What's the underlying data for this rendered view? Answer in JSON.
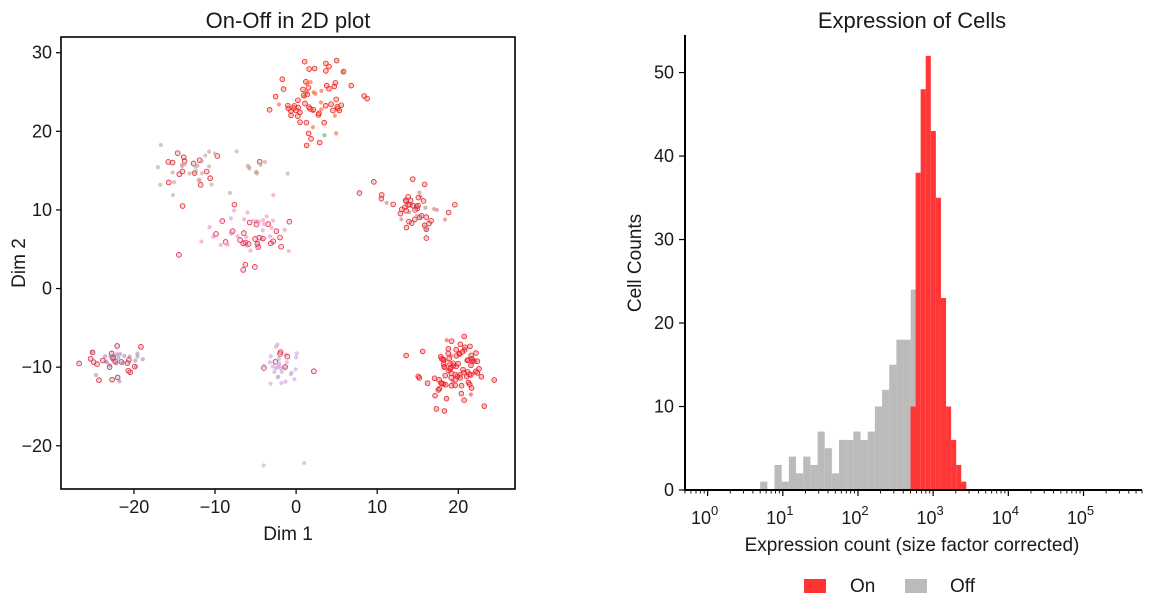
{
  "colors": {
    "on": "#ff3333",
    "off": "#bbbbbb",
    "cluster_palette": [
      "#ff2a00",
      "#ff8c00",
      "#4daf4a",
      "#c49c94",
      "#e377c2",
      "#9467bd",
      "#1f77b4",
      "#ff0000"
    ]
  },
  "chart_data": [
    {
      "type": "scatter",
      "title": "On-Off in 2D plot",
      "xlabel": "Dim 1",
      "ylabel": "Dim 2",
      "xlim": [
        -29,
        27
      ],
      "ylim": [
        -25.5,
        32
      ],
      "xticks": [
        -20,
        -10,
        0,
        10,
        20
      ],
      "yticks": [
        -20,
        -10,
        0,
        10,
        20,
        30
      ],
      "xtick_labels": [
        "−20",
        "−10",
        "0",
        "10",
        "20"
      ],
      "ytick_labels": [
        "−20",
        "−10",
        "0",
        "10",
        "20",
        "30"
      ],
      "grid": false,
      "clusters": [
        {
          "center": [
            2,
            24
          ],
          "spread": [
            3.2,
            3.0
          ],
          "n": 70,
          "color": "#ff5a1f",
          "on_fraction": 0.75
        },
        {
          "center": [
            -13,
            15
          ],
          "spread": [
            3.0,
            1.6
          ],
          "n": 40,
          "color": "#c49c94",
          "on_fraction": 0.3
        },
        {
          "center": [
            -4.5,
            15.5
          ],
          "spread": [
            1.5,
            1.0
          ],
          "n": 10,
          "color": "#c49c94",
          "on_fraction": 0.3
        },
        {
          "center": [
            14.5,
            10.3
          ],
          "spread": [
            2.4,
            2.0
          ],
          "n": 50,
          "color": "#c97b7b",
          "on_fraction": 0.65
        },
        {
          "center": [
            -5.5,
            7
          ],
          "spread": [
            3.3,
            2.2
          ],
          "n": 60,
          "color": "#f08cc8",
          "on_fraction": 0.4
        },
        {
          "center": [
            -23,
            -9.5
          ],
          "spread": [
            2.2,
            1.6
          ],
          "n": 45,
          "color": "#a889b0",
          "on_fraction": 0.5
        },
        {
          "center": [
            -2,
            -10
          ],
          "spread": [
            1.6,
            1.7
          ],
          "n": 35,
          "color": "#c8a2d8",
          "on_fraction": 0.3
        },
        {
          "center": [
            19.5,
            -10.3
          ],
          "spread": [
            2.6,
            2.2
          ],
          "n": 90,
          "color": "#ff3b3b",
          "on_fraction": 0.9
        }
      ],
      "extra_points": [
        {
          "x": -4,
          "y": -22.5,
          "color": "#c8a2d8",
          "on": false
        },
        {
          "x": 1,
          "y": -22.2,
          "color": "#c8a2d8",
          "on": false
        },
        {
          "x": -14,
          "y": 10.5,
          "color": "#c49c94",
          "on": true
        },
        {
          "x": 5,
          "y": 29,
          "color": "#a06040",
          "on": true
        },
        {
          "x": 3.5,
          "y": 19.5,
          "color": "#4daf4a",
          "on": false
        }
      ]
    },
    {
      "type": "bar",
      "title": "Expression of Cells",
      "xlabel": "Expression count (size factor corrected)",
      "ylabel": "Cell Counts",
      "xscale": "log",
      "xlim": [
        0.5,
        600000
      ],
      "ylim": [
        0,
        54.5
      ],
      "xticks": [
        1,
        10,
        100,
        1000,
        10000,
        100000
      ],
      "xtick_base": "10",
      "xtick_exponents": [
        "0",
        "1",
        "2",
        "3",
        "4",
        "5"
      ],
      "yticks": [
        0,
        10,
        20,
        30,
        40,
        50
      ],
      "ytick_labels": [
        "0",
        "10",
        "20",
        "30",
        "40",
        "50"
      ],
      "grid": false,
      "legend": {
        "placement": "bottom-center",
        "entries": [
          "On",
          "Off"
        ]
      },
      "series": [
        {
          "name": "Off",
          "bin_edges": [
            5.0,
            6.23,
            7.76,
            9.66,
            12.04,
            15.0,
            18.68,
            23.27,
            28.98,
            36.1,
            44.96,
            56.0,
            69.74,
            86.86,
            108.2,
            134.8,
            167.8,
            209.1,
            260.4,
            324.3,
            403.9,
            503.1,
            626.6
          ],
          "values": [
            1,
            0,
            3,
            1,
            4,
            2,
            4,
            3,
            7,
            5,
            2,
            6,
            6,
            7,
            6,
            7,
            10,
            12,
            15,
            18,
            18,
            24
          ]
        },
        {
          "name": "On",
          "bin_edges": [
            500.0,
            584.0,
            682.0,
            797.0,
            931.0,
            1087.0,
            1270.0,
            1484.0,
            1733.0,
            2025.0,
            2365.0,
            2762.0
          ],
          "values": [
            10,
            38,
            48,
            52,
            43,
            35,
            23,
            10,
            6,
            3,
            1
          ]
        }
      ]
    }
  ]
}
